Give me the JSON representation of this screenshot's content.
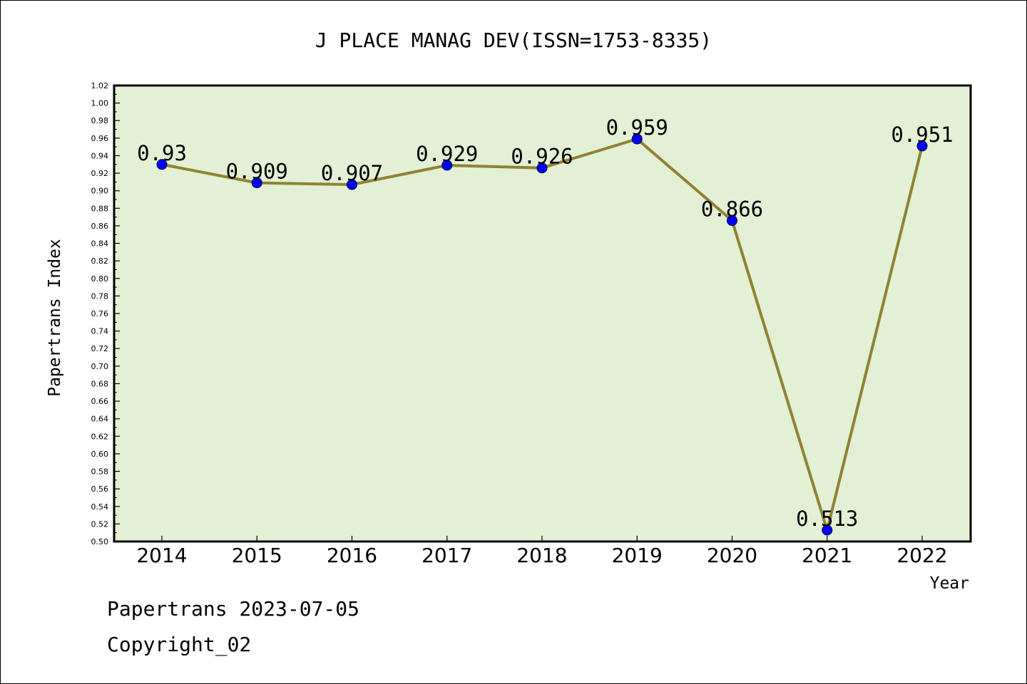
{
  "chart_data": {
    "type": "line",
    "title": "J PLACE MANAG DEV(ISSN=1753-8335)",
    "xlabel": "Year",
    "ylabel": "Papertrans Index",
    "categories": [
      "2014",
      "2015",
      "2016",
      "2017",
      "2018",
      "2019",
      "2020",
      "2021",
      "2022"
    ],
    "series": [
      {
        "values": [
          0.93,
          0.909,
          0.907,
          0.929,
          0.926,
          0.959,
          0.866,
          0.513,
          0.951
        ],
        "data_labels": [
          "0.93",
          "0.909",
          "0.907",
          "0.929",
          "0.926",
          "0.959",
          "0.866",
          "0.513",
          "0.951"
        ]
      }
    ],
    "ylim": [
      0.5,
      1.02
    ],
    "yticks": [
      "0.50",
      "0.52",
      "0.54",
      "0.56",
      "0.58",
      "0.60",
      "0.62",
      "0.64",
      "0.66",
      "0.68",
      "0.70",
      "0.72",
      "0.74",
      "0.76",
      "0.78",
      "0.80",
      "0.82",
      "0.84",
      "0.86",
      "0.88",
      "0.90",
      "0.92",
      "0.94",
      "0.96",
      "0.98",
      "1.00",
      "1.02"
    ],
    "grid": false,
    "colors": {
      "plot_background": "#e3f0d5",
      "line": "#8f8232",
      "marker": "#0000ff"
    }
  },
  "footer": {
    "date_line": "Papertrans 2023-07-05",
    "copyright": "Copyright_02"
  }
}
